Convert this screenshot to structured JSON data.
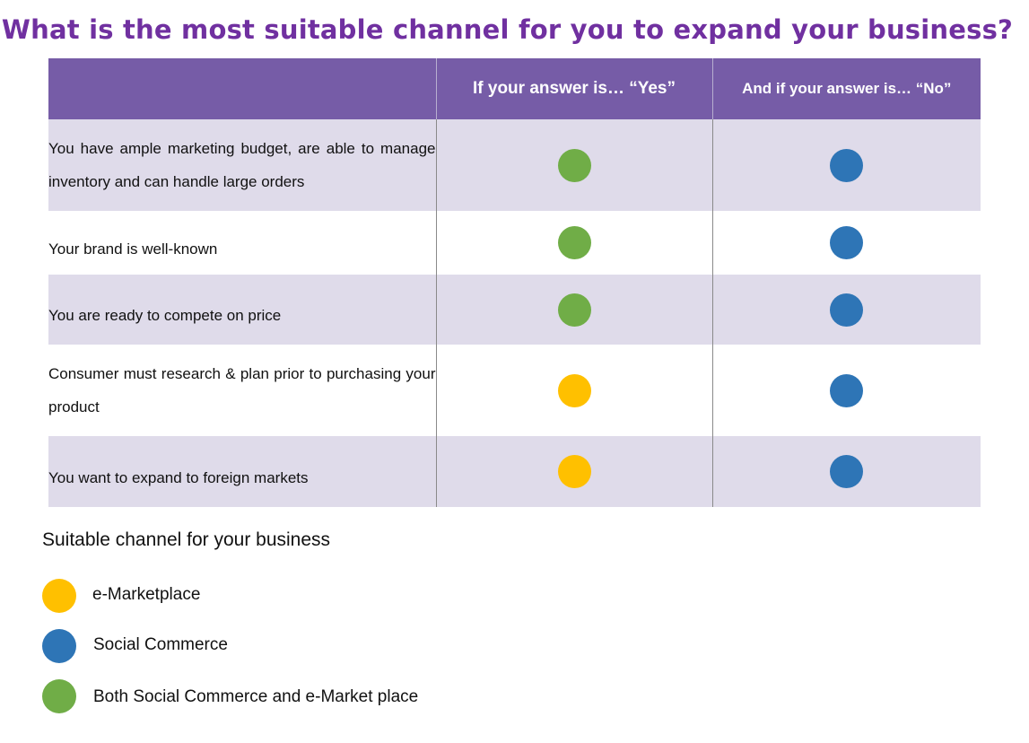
{
  "title": "What is the most suitable channel for you to expand your business?",
  "colors": {
    "e_marketplace": "#ffc000",
    "social_commerce": "#2e75b6",
    "both": "#70ad47",
    "header_bg": "#765ca7",
    "title": "#7030a0"
  },
  "table": {
    "headers": [
      "",
      "If your answer is… “Yes”",
      "And if your answer is… “No”"
    ],
    "rows": [
      {
        "question": "You have ample marketing budget, are able to manage inventory and can handle large orders",
        "yes": "both",
        "no": "social_commerce"
      },
      {
        "question": "Your brand is well-known",
        "yes": "both",
        "no": "social_commerce"
      },
      {
        "question": "You are ready to compete on price",
        "yes": "both",
        "no": "social_commerce"
      },
      {
        "question": "Consumer must research & plan prior to purchasing your product",
        "yes": "e_marketplace",
        "no": "social_commerce"
      },
      {
        "question": "You want to expand to foreign markets",
        "yes": "e_marketplace",
        "no": "social_commerce"
      }
    ]
  },
  "legend": {
    "title": "Suitable channel for your business",
    "items": [
      {
        "key": "e_marketplace",
        "label": "e-Marketplace"
      },
      {
        "key": "social_commerce",
        "label": "Social Commerce"
      },
      {
        "key": "both",
        "label": "Both Social Commerce and e-Market place"
      }
    ]
  }
}
